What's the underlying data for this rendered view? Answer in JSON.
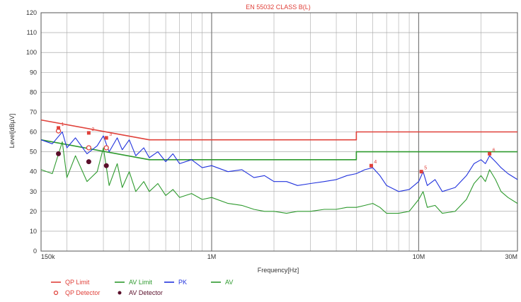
{
  "chart_data": {
    "type": "line",
    "title": "EN 55032 CLASS B(L)",
    "xlabel": "Frequency[Hz]",
    "ylabel": "Level[dBµV]",
    "xscale": "log",
    "xlim": [
      150000,
      30000000
    ],
    "ylim": [
      0,
      120
    ],
    "grid": true,
    "x_ticks": [
      {
        "value": 150000,
        "label": "150k"
      },
      {
        "value": 1000000,
        "label": "1M"
      },
      {
        "value": 10000000,
        "label": "10M"
      },
      {
        "value": 30000000,
        "label": "30M"
      }
    ],
    "y_ticks": [
      0,
      10,
      20,
      30,
      40,
      50,
      60,
      70,
      80,
      90,
      100,
      110,
      120
    ],
    "series": [
      {
        "name": "QP Limit",
        "color": "#e0413a",
        "style": "line",
        "points": [
          [
            150000,
            66
          ],
          [
            500000,
            56
          ],
          [
            5000000,
            56
          ],
          [
            5000000,
            60
          ],
          [
            30000000,
            60
          ]
        ]
      },
      {
        "name": "AV Limit",
        "color": "#2e9a2e",
        "style": "line",
        "points": [
          [
            150000,
            56
          ],
          [
            500000,
            46
          ],
          [
            5000000,
            46
          ],
          [
            5000000,
            50
          ],
          [
            30000000,
            50
          ]
        ]
      },
      {
        "name": "PK",
        "color": "#2233dd",
        "style": "line",
        "points": [
          [
            150000,
            56
          ],
          [
            170000,
            54
          ],
          [
            190000,
            60
          ],
          [
            200000,
            52
          ],
          [
            220000,
            57
          ],
          [
            250000,
            49
          ],
          [
            280000,
            53
          ],
          [
            300000,
            58
          ],
          [
            320000,
            50
          ],
          [
            350000,
            57
          ],
          [
            370000,
            51
          ],
          [
            400000,
            56
          ],
          [
            430000,
            48
          ],
          [
            470000,
            52
          ],
          [
            500000,
            47
          ],
          [
            550000,
            50
          ],
          [
            600000,
            45
          ],
          [
            650000,
            49
          ],
          [
            700000,
            44
          ],
          [
            800000,
            46
          ],
          [
            900000,
            42
          ],
          [
            1000000,
            43
          ],
          [
            1200000,
            40
          ],
          [
            1400000,
            41
          ],
          [
            1600000,
            37
          ],
          [
            1800000,
            38
          ],
          [
            2000000,
            35
          ],
          [
            2300000,
            35
          ],
          [
            2600000,
            33
          ],
          [
            3000000,
            34
          ],
          [
            3500000,
            35
          ],
          [
            4000000,
            36
          ],
          [
            4500000,
            38
          ],
          [
            5000000,
            39
          ],
          [
            5500000,
            41
          ],
          [
            6000000,
            42
          ],
          [
            6500000,
            38
          ],
          [
            7000000,
            33
          ],
          [
            8000000,
            30
          ],
          [
            9000000,
            31
          ],
          [
            10000000,
            35
          ],
          [
            10500000,
            40
          ],
          [
            11000000,
            33
          ],
          [
            12000000,
            36
          ],
          [
            13000000,
            30
          ],
          [
            15000000,
            32
          ],
          [
            17000000,
            38
          ],
          [
            18500000,
            44
          ],
          [
            20000000,
            46
          ],
          [
            21000000,
            44
          ],
          [
            22000000,
            48
          ],
          [
            23500000,
            45
          ],
          [
            25000000,
            42
          ],
          [
            27000000,
            39
          ],
          [
            30000000,
            36
          ]
        ]
      },
      {
        "name": "AV",
        "color": "#2e9a2e",
        "style": "line",
        "points": [
          [
            150000,
            41
          ],
          [
            170000,
            39
          ],
          [
            190000,
            55
          ],
          [
            200000,
            37
          ],
          [
            220000,
            48
          ],
          [
            250000,
            35
          ],
          [
            280000,
            40
          ],
          [
            300000,
            52
          ],
          [
            320000,
            33
          ],
          [
            350000,
            44
          ],
          [
            370000,
            32
          ],
          [
            400000,
            40
          ],
          [
            430000,
            30
          ],
          [
            470000,
            35
          ],
          [
            500000,
            30
          ],
          [
            550000,
            34
          ],
          [
            600000,
            28
          ],
          [
            650000,
            31
          ],
          [
            700000,
            27
          ],
          [
            800000,
            29
          ],
          [
            900000,
            26
          ],
          [
            1000000,
            27
          ],
          [
            1200000,
            24
          ],
          [
            1400000,
            23
          ],
          [
            1600000,
            21
          ],
          [
            1800000,
            20
          ],
          [
            2000000,
            20
          ],
          [
            2300000,
            19
          ],
          [
            2600000,
            20
          ],
          [
            3000000,
            20
          ],
          [
            3500000,
            21
          ],
          [
            4000000,
            21
          ],
          [
            4500000,
            22
          ],
          [
            5000000,
            22
          ],
          [
            5500000,
            23
          ],
          [
            6000000,
            24
          ],
          [
            6500000,
            22
          ],
          [
            7000000,
            19
          ],
          [
            8000000,
            19
          ],
          [
            9000000,
            20
          ],
          [
            10000000,
            26
          ],
          [
            10500000,
            30
          ],
          [
            11000000,
            22
          ],
          [
            12000000,
            23
          ],
          [
            13000000,
            19
          ],
          [
            15000000,
            20
          ],
          [
            17000000,
            26
          ],
          [
            18500000,
            34
          ],
          [
            20000000,
            38
          ],
          [
            21000000,
            35
          ],
          [
            22000000,
            41
          ],
          [
            23500000,
            36
          ],
          [
            25000000,
            30
          ],
          [
            27000000,
            27
          ],
          [
            30000000,
            24
          ]
        ]
      }
    ],
    "qp_detector": [
      [
        182000,
        60.5
      ],
      [
        255000,
        52
      ],
      [
        310000,
        52
      ]
    ],
    "av_detector": [
      [
        182000,
        49
      ],
      [
        255000,
        45
      ],
      [
        310000,
        43
      ]
    ],
    "peak_markers": [
      {
        "label": "1",
        "x": 182000,
        "y": 62
      },
      {
        "label": "2",
        "x": 255000,
        "y": 59.5
      },
      {
        "label": "3",
        "x": 310000,
        "y": 57
      },
      {
        "label": "4",
        "x": 5900000,
        "y": 43
      },
      {
        "label": "5",
        "x": 10300000,
        "y": 40
      },
      {
        "label": "6",
        "x": 22000000,
        "y": 49
      }
    ],
    "legend": [
      {
        "label": "QP Limit",
        "color": "#e0413a",
        "kind": "line"
      },
      {
        "label": "AV Limit",
        "color": "#2e9a2e",
        "kind": "line"
      },
      {
        "label": "PK",
        "color": "#2233dd",
        "kind": "line"
      },
      {
        "label": "AV",
        "color": "#2e9a2e",
        "kind": "line"
      },
      {
        "label": "QP Detector",
        "color": "#e0413a",
        "kind": "open-circle"
      },
      {
        "label": "AV Detector",
        "color": "#5a0f2a",
        "kind": "filled-circle"
      }
    ]
  }
}
